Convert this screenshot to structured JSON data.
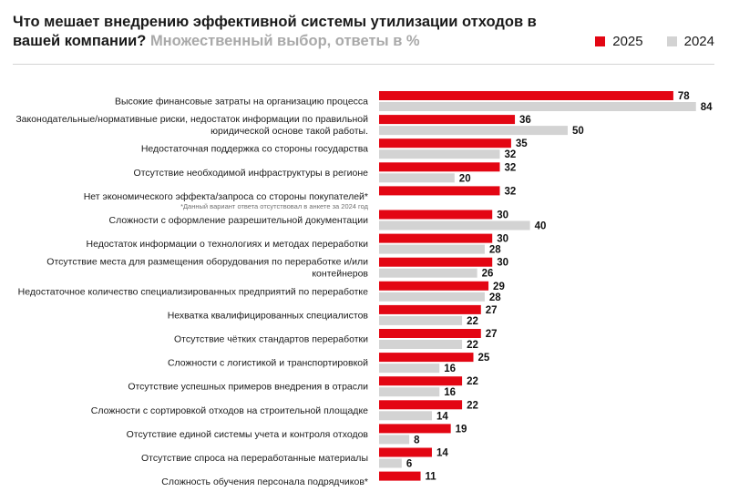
{
  "title": {
    "main": "Что мешает внедрению эффективной системы утилизации отходов в вашей компании?",
    "sub": "Множественный выбор, ответы в %"
  },
  "legend": {
    "label_2025": "2025",
    "label_2024": "2024"
  },
  "colors": {
    "y2025": "#e30613",
    "y2024": "#d3d3d3"
  },
  "chart_data": {
    "type": "bar",
    "orientation": "horizontal",
    "grid": false,
    "legend_position": "top-right",
    "categories": [
      {
        "lines": [
          "Высокие финансовые затраты на организацию процесса"
        ]
      },
      {
        "lines": [
          "Законодательные/нормативные риски, недостаток информации по правильной",
          "юридической основе такой работы."
        ]
      },
      {
        "lines": [
          "Недостаточная поддержка со стороны государства"
        ]
      },
      {
        "lines": [
          "Отсутствие необходимой инфраструктуры в регионе"
        ]
      },
      {
        "lines": [
          "Нет экономического эффекта/запроса со стороны покупателей*"
        ],
        "note": "*Данный вариант ответа отсутствовал в анкете за 2024 год"
      },
      {
        "lines": [
          "Сложности с оформление разрешительной документации"
        ]
      },
      {
        "lines": [
          "Недостаток информации о технологиях и методах переработки"
        ]
      },
      {
        "lines": [
          "Отсутствие места для размещения оборудования по переработке и/или",
          "контейнеров"
        ]
      },
      {
        "lines": [
          "Недостаточное количество специализированных предприятий по переработке"
        ]
      },
      {
        "lines": [
          "Нехватка квалифицированных специалистов"
        ]
      },
      {
        "lines": [
          "Отсутствие чётких стандартов переработки"
        ]
      },
      {
        "lines": [
          "Сложности с логистикой и транспортировкой"
        ]
      },
      {
        "lines": [
          "Отсутствие успешных примеров внедрения в отрасли"
        ]
      },
      {
        "lines": [
          "Сложности с сортировкой отходов на строительной площадке"
        ]
      },
      {
        "lines": [
          "Отсутствие единой системы учета и контроля отходов"
        ]
      },
      {
        "lines": [
          "Отсутствие спроса на переработанные материалы"
        ]
      },
      {
        "lines": [
          "Сложность обучения персонала подрядчиков*"
        ]
      }
    ],
    "series": [
      {
        "name": "2025",
        "values": [
          78,
          36,
          35,
          32,
          32,
          30,
          30,
          30,
          29,
          27,
          27,
          25,
          22,
          22,
          19,
          14,
          11
        ]
      },
      {
        "name": "2024",
        "values": [
          84,
          50,
          32,
          20,
          null,
          40,
          28,
          26,
          28,
          22,
          22,
          16,
          16,
          14,
          8,
          6,
          null
        ]
      }
    ],
    "xlim": [
      0,
      84
    ]
  }
}
